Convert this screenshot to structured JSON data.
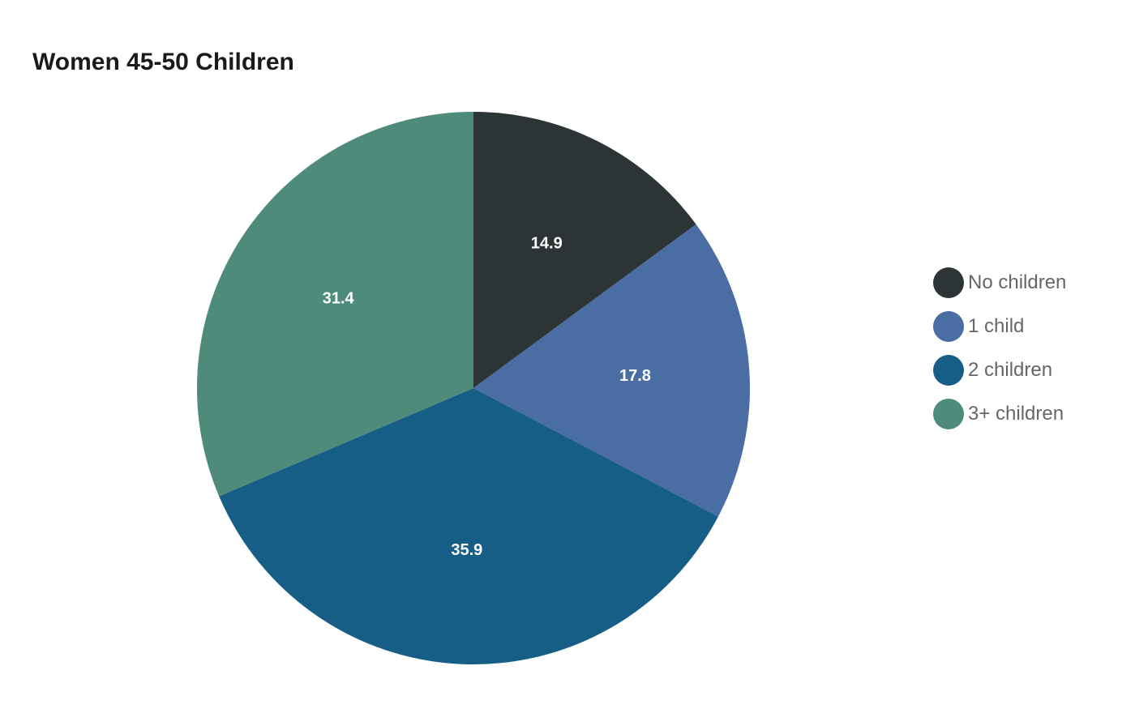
{
  "chart_data": {
    "type": "pie",
    "title": "Women 45-50 Children",
    "legend_position": "right",
    "categories": [
      "No children",
      "1 child",
      "2 children",
      "3+ children"
    ],
    "values": [
      14.9,
      17.8,
      35.9,
      31.4
    ],
    "colors": [
      "#2d3436",
      "#4a6da3",
      "#175e86",
      "#4e8b7a"
    ],
    "value_labels": [
      "14.9",
      "17.8",
      "35.9",
      "31.4"
    ]
  }
}
